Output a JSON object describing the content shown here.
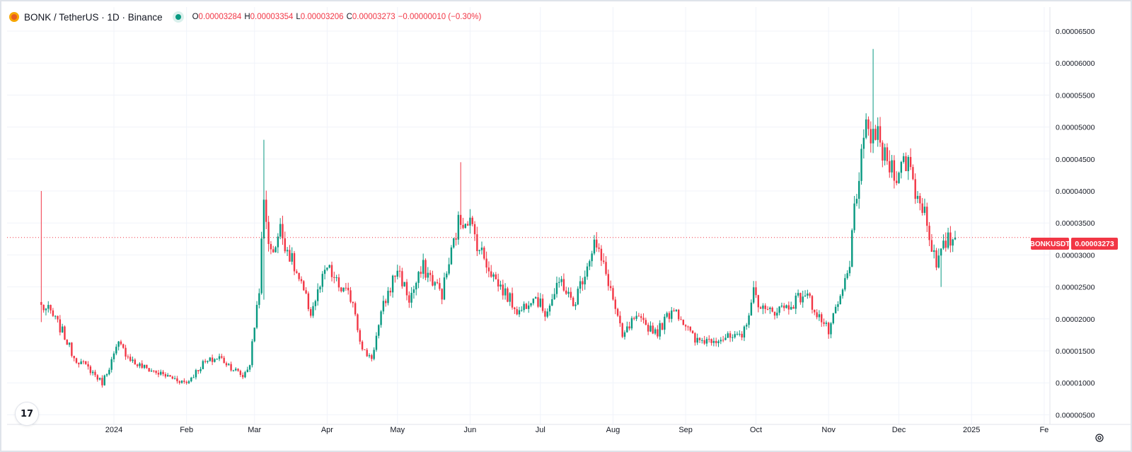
{
  "header": {
    "symbol_title": "BONK / TetherUS · 1D · Binance",
    "open_label": "O",
    "open": "0.00003284",
    "high_label": "H",
    "high": "0.00003354",
    "low_label": "L",
    "low": "0.00003206",
    "close_label": "C",
    "close": "0.00003273",
    "change": "−0.00000010 (−0.30%)"
  },
  "price_tag": {
    "symbol": "BONKUSDT",
    "price": "0.00003273"
  },
  "logo_text": "17",
  "colors": {
    "up": "#089981",
    "down": "#f23645",
    "grid": "#f0f3fa",
    "axis_text": "#131722"
  },
  "chart_data": {
    "type": "candlestick",
    "interval": "1D",
    "ylim": [
      4.5e-06,
      6.8e-06
    ],
    "y_ticks": [
      "0.00000500",
      "0.00001000",
      "0.00001500",
      "0.00002000",
      "0.00002500",
      "0.00003000",
      "0.00003500",
      "0.00004000",
      "0.00004500",
      "0.00005000",
      "0.00005500",
      "0.00006000",
      "0.00006500"
    ],
    "x_ticks": [
      "2024",
      "Feb",
      "Mar",
      "Apr",
      "May",
      "Jun",
      "Jul",
      "Aug",
      "Sep",
      "Oct",
      "Nov",
      "Dec",
      "2025",
      "Fe"
    ],
    "first_date": "2023-12-01",
    "last_date": "2024-12-25",
    "last_price": 3.273e-05,
    "anchors": [
      [
        "2023-12-01",
        2.2e-05
      ],
      [
        "2023-12-05",
        2.1e-05
      ],
      [
        "2023-12-10",
        1.8e-05
      ],
      [
        "2023-12-15",
        1.4e-05
      ],
      [
        "2023-12-22",
        1.2e-05
      ],
      [
        "2023-12-27",
        1e-05
      ],
      [
        "2024-01-03",
        1.6e-05
      ],
      [
        "2024-01-10",
        1.3e-05
      ],
      [
        "2024-01-20",
        1.15e-05
      ],
      [
        "2024-02-01",
        1e-05
      ],
      [
        "2024-02-08",
        1.3e-05
      ],
      [
        "2024-02-15",
        1.4e-05
      ],
      [
        "2024-02-25",
        1.1e-05
      ],
      [
        "2024-02-28",
        1.3e-05
      ],
      [
        "2024-03-03",
        2.5e-05
      ],
      [
        "2024-03-05",
        3.8e-05
      ],
      [
        "2024-03-08",
        3e-05
      ],
      [
        "2024-03-12",
        3.4e-05
      ],
      [
        "2024-03-18",
        2.8e-05
      ],
      [
        "2024-03-25",
        2.1e-05
      ],
      [
        "2024-04-01",
        2.8e-05
      ],
      [
        "2024-04-06",
        2.5e-05
      ],
      [
        "2024-04-12",
        2.3e-05
      ],
      [
        "2024-04-16",
        1.5e-05
      ],
      [
        "2024-04-20",
        1.4e-05
      ],
      [
        "2024-04-25",
        2.2e-05
      ],
      [
        "2024-05-01",
        2.8e-05
      ],
      [
        "2024-05-06",
        2.3e-05
      ],
      [
        "2024-05-12",
        2.8e-05
      ],
      [
        "2024-05-20",
        2.4e-05
      ],
      [
        "2024-05-27",
        3.5e-05
      ],
      [
        "2024-05-31",
        3.6e-05
      ],
      [
        "2024-06-05",
        3.1e-05
      ],
      [
        "2024-06-12",
        2.6e-05
      ],
      [
        "2024-06-22",
        2.1e-05
      ],
      [
        "2024-06-28",
        2.4e-05
      ],
      [
        "2024-07-03",
        2.1e-05
      ],
      [
        "2024-07-10",
        2.6e-05
      ],
      [
        "2024-07-15",
        2.2e-05
      ],
      [
        "2024-07-24",
        3.2e-05
      ],
      [
        "2024-07-30",
        2.6e-05
      ],
      [
        "2024-08-05",
        1.7e-05
      ],
      [
        "2024-08-10",
        2e-05
      ],
      [
        "2024-08-20",
        1.8e-05
      ],
      [
        "2024-08-27",
        2.2e-05
      ],
      [
        "2024-09-05",
        1.65e-05
      ],
      [
        "2024-09-15",
        1.7e-05
      ],
      [
        "2024-09-25",
        1.7e-05
      ],
      [
        "2024-09-30",
        2.4e-05
      ],
      [
        "2024-10-05",
        2.1e-05
      ],
      [
        "2024-10-15",
        2.2e-05
      ],
      [
        "2024-10-22",
        2.4e-05
      ],
      [
        "2024-11-01",
        1.8e-05
      ],
      [
        "2024-11-05",
        2.2e-05
      ],
      [
        "2024-11-10",
        2.8e-05
      ],
      [
        "2024-11-12",
        3.8e-05
      ],
      [
        "2024-11-17",
        4.9e-05
      ],
      [
        "2024-11-21",
        4.9e-05
      ],
      [
        "2024-11-25",
        4.5e-05
      ],
      [
        "2024-11-30",
        4.3e-05
      ],
      [
        "2024-12-05",
        4.5e-05
      ],
      [
        "2024-12-08",
        4e-05
      ],
      [
        "2024-12-12",
        3.7e-05
      ],
      [
        "2024-12-17",
        2.8e-05
      ],
      [
        "2024-12-21",
        3.2e-05
      ],
      [
        "2024-12-25",
        3.273e-05
      ]
    ],
    "notable_wicks": [
      {
        "date": "2023-12-01",
        "high": 4e-05,
        "low": 1.95e-05
      },
      {
        "date": "2024-03-05",
        "high": 4.8e-05,
        "low": 2.3e-05
      },
      {
        "date": "2024-05-28",
        "high": 4.45e-05,
        "low": 3.4e-05
      },
      {
        "date": "2024-11-20",
        "high": 6.22e-05,
        "low": 4.6e-05
      },
      {
        "date": "2024-12-19",
        "high": 3.1e-05,
        "low": 2.5e-05
      }
    ]
  }
}
